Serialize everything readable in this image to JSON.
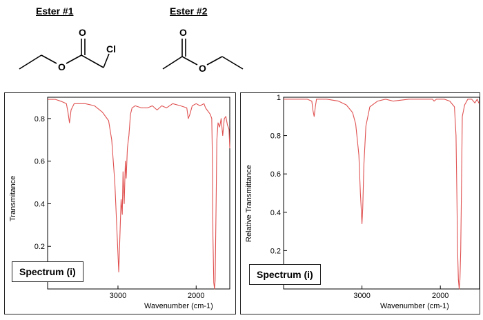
{
  "esters": [
    {
      "title": "Ester #1",
      "atom_labels": [
        "O",
        "O",
        "Cl"
      ]
    },
    {
      "title": "Ester #2",
      "atom_labels": [
        "O",
        "O"
      ]
    }
  ],
  "chart_data": [
    {
      "type": "line",
      "title": "",
      "label_box": "Spectrum (i)",
      "xlabel": "Wavenumber (cm-1)",
      "ylabel": "Transmitance",
      "xlim": [
        3900,
        1570
      ],
      "ylim": [
        0.0,
        0.9
      ],
      "x_ticks": [
        3000,
        2000
      ],
      "y_ticks": [
        0.2,
        0.4,
        0.6,
        0.8
      ],
      "grid": false,
      "line_color": "#e05050",
      "series": [
        {
          "x": [
            3900,
            3800,
            3720,
            3660,
            3640,
            3620,
            3600,
            3560,
            3480,
            3420,
            3300,
            3200,
            3120,
            3080,
            3040,
            3010,
            2990,
            2975,
            2960,
            2945,
            2935,
            2920,
            2905,
            2895,
            2880,
            2860,
            2840,
            2820,
            2780,
            2700,
            2620,
            2560,
            2500,
            2440,
            2380,
            2300,
            2200,
            2120,
            2100,
            2080,
            2050,
            2000,
            1950,
            1900,
            1880,
            1860,
            1840,
            1820,
            1800,
            1790,
            1785,
            1775,
            1765,
            1757,
            1745,
            1735,
            1720,
            1700,
            1680,
            1660,
            1640,
            1620,
            1600,
            1580,
            1570
          ],
          "y": [
            0.89,
            0.89,
            0.88,
            0.87,
            0.83,
            0.78,
            0.84,
            0.87,
            0.87,
            0.87,
            0.86,
            0.83,
            0.79,
            0.7,
            0.5,
            0.25,
            0.08,
            0.25,
            0.42,
            0.35,
            0.55,
            0.4,
            0.6,
            0.52,
            0.66,
            0.72,
            0.82,
            0.85,
            0.86,
            0.85,
            0.85,
            0.86,
            0.84,
            0.86,
            0.85,
            0.87,
            0.86,
            0.85,
            0.8,
            0.82,
            0.86,
            0.87,
            0.86,
            0.87,
            0.85,
            0.84,
            0.83,
            0.82,
            0.8,
            0.55,
            0.25,
            0.03,
            0.0,
            0.04,
            0.4,
            0.7,
            0.78,
            0.76,
            0.8,
            0.72,
            0.8,
            0.81,
            0.77,
            0.75,
            0.66
          ]
        }
      ]
    },
    {
      "type": "line",
      "title": "",
      "label_box": "Spectrum (i)",
      "xlabel": "Wavenumber (cm-1)",
      "ylabel": "Relative Transmittance",
      "xlim": [
        4000,
        1500
      ],
      "ylim": [
        0.0,
        1.0
      ],
      "x_ticks": [
        3000,
        2000
      ],
      "y_ticks": [
        0.2,
        0.4,
        0.6,
        0.8,
        1
      ],
      "grid": false,
      "line_color": "#e05050",
      "series": [
        {
          "x": [
            4000,
            3900,
            3800,
            3700,
            3640,
            3625,
            3610,
            3595,
            3580,
            3550,
            3450,
            3300,
            3200,
            3120,
            3080,
            3040,
            3020,
            3010,
            3000,
            2990,
            2975,
            2950,
            2900,
            2800,
            2700,
            2600,
            2400,
            2200,
            2100,
            2080,
            2050,
            1950,
            1880,
            1820,
            1800,
            1790,
            1780,
            1770,
            1760,
            1750,
            1740,
            1730,
            1720,
            1690,
            1650,
            1600,
            1560,
            1530,
            1510,
            1500
          ],
          "y": [
            0.99,
            0.99,
            0.99,
            0.99,
            0.98,
            0.93,
            0.9,
            0.95,
            0.99,
            0.99,
            0.99,
            0.98,
            0.96,
            0.92,
            0.86,
            0.7,
            0.5,
            0.42,
            0.34,
            0.42,
            0.65,
            0.85,
            0.95,
            0.98,
            0.99,
            0.98,
            0.99,
            0.99,
            0.99,
            0.98,
            0.99,
            0.99,
            0.98,
            0.95,
            0.8,
            0.5,
            0.2,
            0.05,
            0.0,
            0.05,
            0.2,
            0.55,
            0.9,
            0.96,
            0.99,
            0.99,
            0.97,
            0.99,
            0.97,
            0.97
          ]
        }
      ]
    }
  ]
}
